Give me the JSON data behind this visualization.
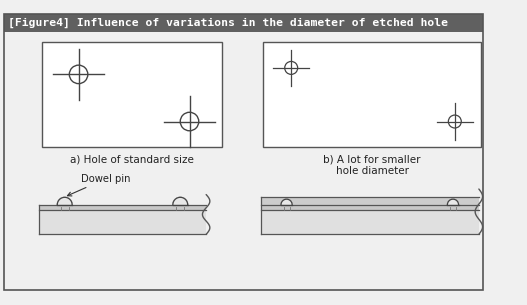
{
  "title": "[Figure4] Influence of variations in the diameter of etched hole",
  "title_bg": "#606060",
  "title_color": "#ffffff",
  "bg_color": "#f0f0f0",
  "border_color": "#555555",
  "label_a": "a) Hole of standard size",
  "label_b": "b) A lot for smaller\nhole diameter",
  "dowel_pin_label": "Dowel pin",
  "fill_color": "#e0e0e0",
  "plate_color": "#d8d8d8",
  "thin_plate_color": "#c8c8c8"
}
